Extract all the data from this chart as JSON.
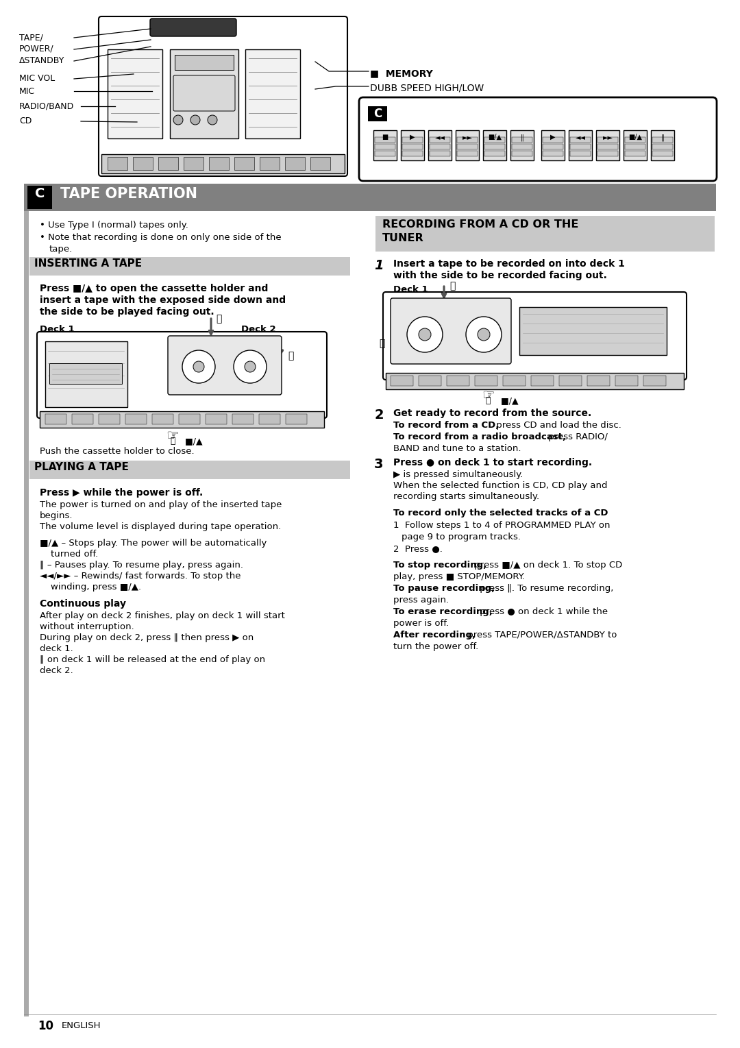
{
  "page_bg": "#ffffff",
  "header_bg": "#808080",
  "subheader_bg": "#c8c8c8",
  "left_bar_color": "#aaaaaa",
  "title": "TAPE OPERATION",
  "title_letter": "C",
  "footer_num": "10",
  "footer_lang": "ENGLISH",
  "top_labels_left": [
    "TAPE/",
    "POWER/",
    "ΔSTANDBY",
    "MIC VOL",
    "MIC",
    "RADIO/BAND",
    "CD"
  ],
  "top_labels_right": [
    "■  MEMORY",
    "DUBB SPEED HIGH/LOW"
  ],
  "inserting_header": "INSERTING A TAPE",
  "playing_header": "PLAYING A TAPE",
  "recording_header_1": "RECORDING FROM A CD OR THE",
  "recording_header_2": "TUNER"
}
